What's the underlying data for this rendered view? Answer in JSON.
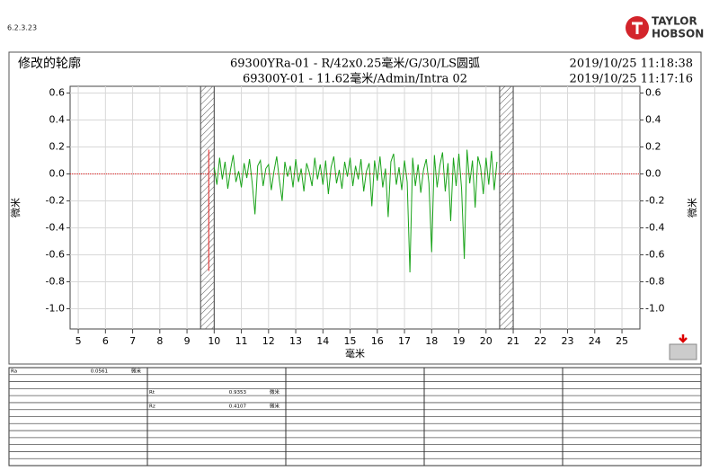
{
  "header": {
    "version": "6.2.3.23",
    "logo_top": "TAYLOR",
    "logo_bottom": "HOBSON"
  },
  "chart_data": {
    "type": "line",
    "title": "修改的轮廓",
    "subtitle_lines": [
      "69300YRa-01 - R/42x0.25毫米/G/30/LS圆弧",
      "69300Y-01 - 11.62毫米/Admin/Intra 02"
    ],
    "timestamps": [
      "2019/10/25 11:18:38",
      "2019/10/25 11:17:16"
    ],
    "x_label": "毫米",
    "y_label": "微米",
    "y2_label": "微米",
    "xlim": [
      4.7,
      25.66
    ],
    "xticks": [
      5,
      6,
      7,
      8,
      9,
      10,
      11,
      12,
      13,
      14,
      15,
      16,
      17,
      18,
      19,
      20,
      21,
      22,
      23,
      24,
      25
    ],
    "ylim": [
      -1.15,
      0.65
    ],
    "yticks": [
      0.6,
      0.4,
      0.2,
      {
        "value": 0,
        "label": "0.0"
      },
      -0.2,
      -0.4,
      -0.6,
      -0.8,
      {
        "value": -1,
        "label": "-1.0"
      }
    ],
    "y2lim": [
      -1.15,
      0.65
    ],
    "y2ticks": [
      0.6,
      0.4,
      0.2,
      {
        "value": 0,
        "label": "0.0"
      },
      -0.2,
      -0.4,
      -0.6,
      -0.8,
      {
        "value": -1,
        "label": "-1.0"
      }
    ],
    "grid": true,
    "excluded_ranges": [
      [
        9.5,
        10
      ],
      [
        20.5,
        21
      ]
    ],
    "series": [
      {
        "color": "#1aa31a",
        "x": [
          10,
          10.1,
          10.2,
          10.3,
          10.4,
          10.5,
          10.6,
          10.7,
          10.8,
          10.9,
          11,
          11.1,
          11.2,
          11.3,
          11.4,
          11.5,
          11.6,
          11.7,
          11.8,
          11.9,
          12,
          12.1,
          12.2,
          12.3,
          12.4,
          12.5,
          12.6,
          12.7,
          12.8,
          12.9,
          13,
          13.1,
          13.2,
          13.3,
          13.4,
          13.5,
          13.6,
          13.7,
          13.8,
          13.9,
          14,
          14.1,
          14.2,
          14.3,
          14.4,
          14.5,
          14.6,
          14.7,
          14.8,
          14.9,
          15,
          15.1,
          15.2,
          15.3,
          15.4,
          15.5,
          15.6,
          15.7,
          15.8,
          15.9,
          16,
          16.1,
          16.2,
          16.3,
          16.4,
          16.5,
          16.6,
          16.7,
          16.8,
          16.9,
          17,
          17.1,
          17.2,
          17.3,
          17.4,
          17.5,
          17.6,
          17.7,
          17.8,
          17.9,
          18,
          18.1,
          18.2,
          18.3,
          18.4,
          18.5,
          18.6,
          18.7,
          18.8,
          18.9,
          19,
          19.1,
          19.2,
          19.3,
          19.4,
          19.5,
          19.6,
          19.7,
          19.8,
          19.9,
          20,
          20.1,
          20.2,
          20.3,
          20.4
        ],
        "values": [
          0.05,
          -0.08,
          0.12,
          -0.04,
          0.09,
          -0.11,
          0.03,
          0.14,
          -0.06,
          0.02,
          -0.1,
          0.08,
          -0.03,
          0.11,
          -0.07,
          -0.3,
          0.06,
          0.1,
          -0.09,
          0.04,
          0.07,
          -0.12,
          0.02,
          0.13,
          -0.05,
          -0.2,
          0.09,
          -0.02,
          0.06,
          -0.1,
          0.11,
          -0.06,
          0.04,
          -0.13,
          0.08,
          0.01,
          -0.09,
          0.12,
          -0.04,
          0.07,
          -0.08,
          0.1,
          -0.15,
          0.05,
          0.13,
          -0.07,
          0.03,
          -0.11,
          0.09,
          -0.02,
          0.12,
          -0.09,
          0.06,
          -0.04,
          0.11,
          -0.13,
          0.02,
          0.08,
          -0.24,
          0.1,
          -0.05,
          0.13,
          -0.1,
          0.04,
          -0.32,
          0.09,
          0.15,
          -0.08,
          0.05,
          -0.12,
          0.1,
          -0.06,
          -0.73,
          0.12,
          -0.09,
          0.07,
          -0.14,
          0.03,
          0.11,
          -0.07,
          -0.58,
          0.14,
          -0.1,
          0.06,
          0.16,
          -0.13,
          0.08,
          -0.35,
          0.12,
          -0.09,
          0.15,
          -0.11,
          -0.63,
          0.18,
          -0.07,
          0.1,
          -0.25,
          0.13,
          0.05,
          -0.15,
          0.12,
          -0.08,
          0.17,
          -0.12,
          0.09
        ]
      },
      {
        "color": "#e02020",
        "x": [
          9.8,
          9.8
        ],
        "values": [
          0.18,
          -0.72
        ]
      }
    ]
  },
  "table": {
    "rows": [
      [
        {
          "name": "Ra",
          "value": "0.0561",
          "unit": "微米"
        },
        null,
        null,
        null,
        null
      ],
      [
        null,
        null,
        null,
        null,
        null
      ],
      [
        null,
        null,
        null,
        null,
        null
      ],
      [
        null,
        {
          "name": "Rt",
          "value": "0.9353",
          "unit": "微米"
        },
        null,
        null,
        null
      ],
      [
        null,
        null,
        null,
        null,
        null
      ],
      [
        null,
        {
          "name": "Rz",
          "value": "0.4107",
          "unit": "微米"
        },
        null,
        null,
        null
      ],
      [
        null,
        null,
        null,
        null,
        null
      ],
      [
        null,
        null,
        null,
        null,
        null
      ],
      [
        null,
        null,
        null,
        null,
        null
      ],
      [
        null,
        null,
        null,
        null,
        null
      ],
      [
        null,
        null,
        null,
        null,
        null
      ],
      [
        null,
        null,
        null,
        null,
        null
      ],
      [
        null,
        null,
        null,
        null,
        null
      ],
      [
        null,
        null,
        null,
        null,
        null
      ]
    ]
  }
}
